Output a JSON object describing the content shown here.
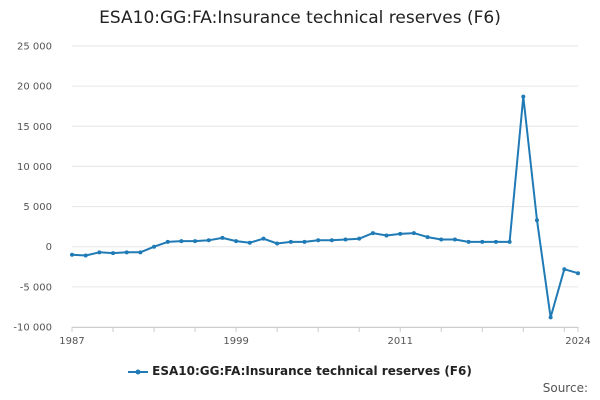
{
  "chart_data": {
    "type": "line",
    "title": "ESA10:GG:FA:Insurance technical reserves (F6)",
    "xlabel": "",
    "ylabel": "",
    "ylim": [
      -10000,
      25000
    ],
    "yticks": [
      25000,
      20000,
      15000,
      10000,
      5000,
      0,
      -5000,
      -10000
    ],
    "ytick_labels": [
      "25 000",
      "20 000",
      "15 000",
      "10 000",
      "5 000",
      "0",
      "-5 000",
      "-10 000"
    ],
    "xlim": [
      1987,
      2024
    ],
    "xticks": [
      1987,
      1999,
      2011,
      2024
    ],
    "grid": true,
    "legend_position": "bottom",
    "source_label": "Source:",
    "series": [
      {
        "name": "ESA10:GG:FA:Insurance technical reserves (F6)",
        "color": "#1f7ab5",
        "x": [
          1987,
          1988,
          1989,
          1990,
          1991,
          1992,
          1993,
          1994,
          1995,
          1996,
          1997,
          1998,
          1999,
          2000,
          2001,
          2002,
          2003,
          2004,
          2005,
          2006,
          2007,
          2008,
          2009,
          2010,
          2011,
          2012,
          2013,
          2014,
          2015,
          2016,
          2017,
          2018,
          2019,
          2020,
          2021,
          2022,
          2023,
          2024
        ],
        "values": [
          -1000,
          -1100,
          -700,
          -800,
          -700,
          -700,
          0,
          600,
          700,
          700,
          800,
          1100,
          700,
          500,
          1000,
          400,
          600,
          600,
          800,
          800,
          900,
          1000,
          1700,
          1400,
          1600,
          1700,
          1200,
          900,
          900,
          600,
          600,
          600,
          600,
          18700,
          3300,
          -8800,
          -2800,
          -3300
        ]
      }
    ]
  }
}
